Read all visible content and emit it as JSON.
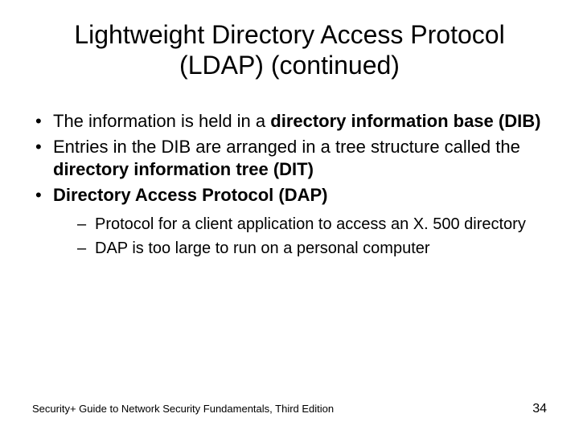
{
  "title_line1": "Lightweight Directory Access Protocol",
  "title_line2": "(LDAP) (continued)",
  "bullets": {
    "b1_pre": "The information is held in a ",
    "b1_bold": "directory information base (DIB)",
    "b2_pre": "Entries in the DIB are arranged in a tree structure called the ",
    "b2_bold": "directory information tree (DIT)",
    "b3_bold": "Directory Access Protocol (DAP)",
    "sub1": "Protocol for a client application to access an X. 500 directory",
    "sub2": "DAP is too large to run on a personal computer"
  },
  "footer_text": "Security+ Guide to Network Security Fundamentals, Third Edition",
  "page_number": "34"
}
